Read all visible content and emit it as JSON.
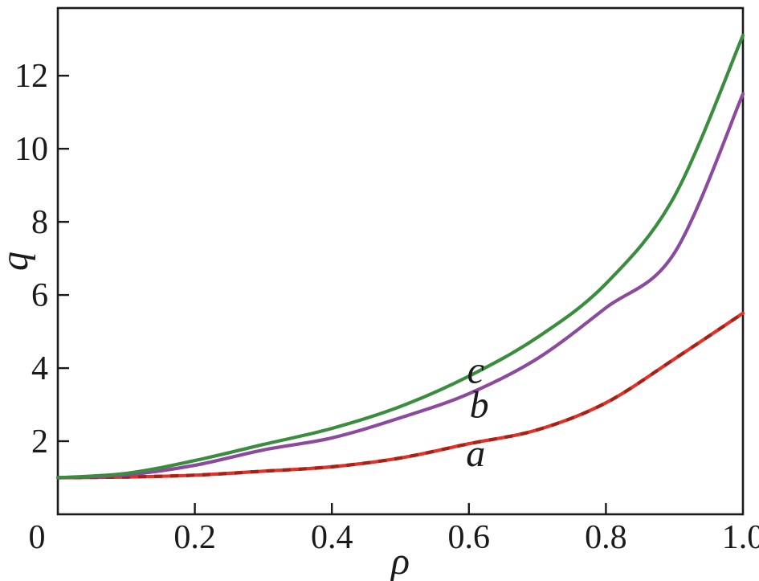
{
  "figure": {
    "background": "#ffffff",
    "frame_color": "#1a1a1a"
  },
  "chart_data": {
    "type": "line",
    "title": "",
    "xlabel": "ρ",
    "ylabel": "q",
    "xlim": [
      0,
      1.0
    ],
    "ylim": [
      0,
      13.85
    ],
    "x_ticks": [
      0.2,
      0.4,
      0.6,
      0.8
    ],
    "x_tick_labels": [
      {
        "value": 0,
        "label": "0"
      },
      {
        "value": 0.2,
        "label": "0.2"
      },
      {
        "value": 0.4,
        "label": "0.4"
      },
      {
        "value": 0.6,
        "label": "0.6"
      },
      {
        "value": 0.8,
        "label": "0.8"
      },
      {
        "value": 1.0,
        "label": "1.0"
      }
    ],
    "y_ticks": [
      2,
      4,
      6,
      8,
      10,
      12
    ],
    "y_tick_labels": [
      "2",
      "4",
      "6",
      "8",
      "10",
      "12"
    ],
    "grid": false,
    "legend_position": "inline-curve-letters",
    "x": [
      0,
      0.1,
      0.2,
      0.3,
      0.4,
      0.5,
      0.6,
      0.7,
      0.8,
      0.9,
      1.0
    ],
    "series": [
      {
        "name": "a",
        "color": "#e23227",
        "dash_overlay_color": "#9c1f15",
        "style": "solid-with-dark-dashes",
        "values": [
          1.0,
          1.02,
          1.07,
          1.18,
          1.3,
          1.54,
          1.93,
          2.31,
          3.05,
          4.25,
          5.5
        ]
      },
      {
        "name": "b",
        "color": "#8b4a9e",
        "style": "solid",
        "values": [
          1.0,
          1.08,
          1.34,
          1.76,
          2.09,
          2.64,
          3.3,
          4.26,
          5.65,
          7.15,
          11.5
        ]
      },
      {
        "name": "c",
        "color": "#3a8d3f",
        "style": "solid",
        "values": [
          1.0,
          1.12,
          1.47,
          1.91,
          2.35,
          2.95,
          3.78,
          4.84,
          6.31,
          8.7,
          13.1
        ]
      }
    ],
    "curve_labels": [
      {
        "text": "a",
        "x": 0.61,
        "y": 1.67
      },
      {
        "text": "b",
        "x": 0.615,
        "y": 3.0
      },
      {
        "text": "c",
        "x": 0.61,
        "y": 3.95
      }
    ]
  }
}
